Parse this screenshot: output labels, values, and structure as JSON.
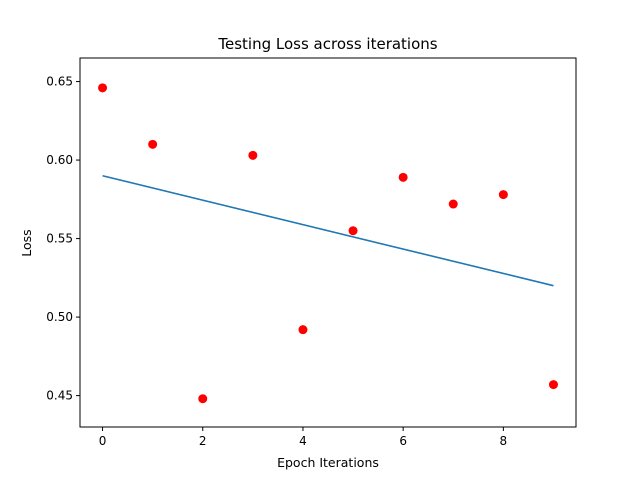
{
  "chart_data": {
    "type": "scatter",
    "title": "Testing Loss across iterations",
    "xlabel": "Epoch Iterations",
    "ylabel": "Loss",
    "xlim": [
      -0.45,
      9.45
    ],
    "ylim": [
      0.43,
      0.665
    ],
    "xticks": [
      0,
      2,
      4,
      6,
      8
    ],
    "xtick_labels": [
      "0",
      "2",
      "4",
      "6",
      "8"
    ],
    "yticks": [
      0.45,
      0.5,
      0.55,
      0.6,
      0.65
    ],
    "ytick_labels": [
      "0.45",
      "0.50",
      "0.55",
      "0.60",
      "0.65"
    ],
    "grid": false,
    "series": [
      {
        "type": "scatter",
        "color": "#ff0000",
        "x": [
          0,
          1,
          2,
          3,
          4,
          5,
          6,
          7,
          8,
          9
        ],
        "y": [
          0.646,
          0.61,
          0.448,
          0.603,
          0.492,
          0.555,
          0.589,
          0.572,
          0.578,
          0.457
        ]
      },
      {
        "type": "line",
        "color": "#1f77b4",
        "x": [
          0,
          9
        ],
        "y": [
          0.59,
          0.52
        ]
      }
    ]
  }
}
